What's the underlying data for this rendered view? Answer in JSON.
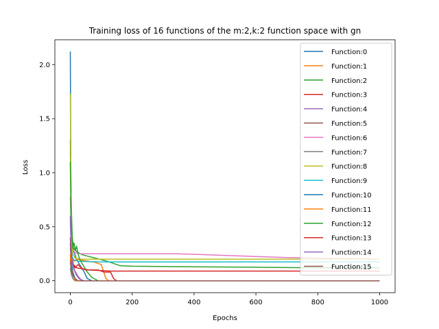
{
  "chart_data": {
    "type": "line",
    "title": "Training loss of 16 functions of the m:2,k:2 function space with gn",
    "xlabel": "Epochs",
    "ylabel": "Loss",
    "xlim": [
      -50,
      1050
    ],
    "ylim": [
      -0.11,
      2.23
    ],
    "xticks": [
      0,
      200,
      400,
      600,
      800,
      1000
    ],
    "yticks": [
      0.0,
      0.5,
      1.0,
      1.5,
      2.0
    ],
    "xtick_labels": [
      "0",
      "200",
      "400",
      "600",
      "800",
      "1000"
    ],
    "ytick_labels": [
      "0.0",
      "0.5",
      "1.0",
      "1.5",
      "2.0"
    ],
    "grid": false,
    "legend_position": "upper right",
    "series": [
      {
        "name": "Function:0",
        "color": "#1f77b4",
        "points": [
          [
            0,
            2.12
          ],
          [
            2,
            0.9
          ],
          [
            5,
            0.45
          ],
          [
            10,
            0.28
          ],
          [
            20,
            0.2
          ],
          [
            30,
            0.15
          ],
          [
            45,
            0.08
          ],
          [
            55,
            0.02
          ],
          [
            70,
            0.0
          ],
          [
            1000,
            0.0
          ]
        ]
      },
      {
        "name": "Function:1",
        "color": "#ff7f0e",
        "points": [
          [
            0,
            1.2
          ],
          [
            3,
            0.5
          ],
          [
            6,
            0.2
          ],
          [
            12,
            0.18
          ],
          [
            20,
            0.2
          ],
          [
            40,
            0.19
          ],
          [
            80,
            0.17
          ],
          [
            100,
            0.15
          ],
          [
            108,
            0.08
          ],
          [
            115,
            0.02
          ],
          [
            125,
            0.0
          ],
          [
            1000,
            0.0
          ]
        ]
      },
      {
        "name": "Function:2",
        "color": "#2ca02c",
        "points": [
          [
            0,
            1.3
          ],
          [
            3,
            0.7
          ],
          [
            6,
            0.4
          ],
          [
            10,
            0.3
          ],
          [
            20,
            0.27
          ],
          [
            40,
            0.24
          ],
          [
            80,
            0.21
          ],
          [
            120,
            0.18
          ],
          [
            160,
            0.14
          ],
          [
            200,
            0.135
          ],
          [
            400,
            0.13
          ],
          [
            600,
            0.125
          ],
          [
            800,
            0.12
          ],
          [
            1000,
            0.12
          ]
        ]
      },
      {
        "name": "Function:3",
        "color": "#d62728",
        "points": [
          [
            0,
            0.22
          ],
          [
            5,
            0.2
          ],
          [
            10,
            0.15
          ],
          [
            20,
            0.12
          ],
          [
            40,
            0.11
          ],
          [
            60,
            0.1
          ],
          [
            100,
            0.095
          ],
          [
            130,
            0.09
          ],
          [
            200,
            0.09
          ],
          [
            1000,
            0.09
          ]
        ]
      },
      {
        "name": "Function:4",
        "color": "#9467bd",
        "points": [
          [
            0,
            0.3
          ],
          [
            3,
            0.22
          ],
          [
            8,
            0.15
          ],
          [
            15,
            0.09
          ],
          [
            25,
            0.04
          ],
          [
            35,
            0.01
          ],
          [
            45,
            0.0
          ],
          [
            1000,
            0.0
          ]
        ]
      },
      {
        "name": "Function:5",
        "color": "#8c564b",
        "points": [
          [
            0,
            0.2
          ],
          [
            3,
            0.12
          ],
          [
            8,
            0.06
          ],
          [
            15,
            0.02
          ],
          [
            25,
            0.0
          ],
          [
            1000,
            0.0
          ]
        ]
      },
      {
        "name": "Function:6",
        "color": "#e377c2",
        "points": [
          [
            0,
            0.78
          ],
          [
            3,
            0.45
          ],
          [
            6,
            0.3
          ],
          [
            15,
            0.26
          ],
          [
            30,
            0.25
          ],
          [
            100,
            0.25
          ],
          [
            200,
            0.25
          ],
          [
            340,
            0.25
          ],
          [
            400,
            0.245
          ],
          [
            500,
            0.235
          ],
          [
            600,
            0.225
          ],
          [
            700,
            0.215
          ],
          [
            800,
            0.21
          ],
          [
            900,
            0.205
          ],
          [
            1000,
            0.2
          ]
        ]
      },
      {
        "name": "Function:7",
        "color": "#7f7f7f",
        "points": [
          [
            0,
            0.12
          ],
          [
            3,
            0.06
          ],
          [
            8,
            0.02
          ],
          [
            15,
            0.0
          ],
          [
            1000,
            0.0
          ]
        ]
      },
      {
        "name": "Function:8",
        "color": "#bcbd22",
        "points": [
          [
            0,
            1.73
          ],
          [
            2,
            0.9
          ],
          [
            4,
            0.45
          ],
          [
            8,
            0.25
          ],
          [
            15,
            0.21
          ],
          [
            30,
            0.2
          ],
          [
            100,
            0.2
          ],
          [
            300,
            0.2
          ],
          [
            600,
            0.2
          ],
          [
            1000,
            0.2
          ]
        ]
      },
      {
        "name": "Function:9",
        "color": "#17becf",
        "points": [
          [
            0,
            0.55
          ],
          [
            3,
            0.3
          ],
          [
            6,
            0.22
          ],
          [
            12,
            0.19
          ],
          [
            30,
            0.18
          ],
          [
            100,
            0.175
          ],
          [
            300,
            0.175
          ],
          [
            600,
            0.175
          ],
          [
            1000,
            0.175
          ]
        ]
      },
      {
        "name": "Function:10",
        "color": "#1f77b4",
        "points": [
          [
            0,
            0.35
          ],
          [
            3,
            0.18
          ],
          [
            8,
            0.08
          ],
          [
            15,
            0.02
          ],
          [
            22,
            0.0
          ],
          [
            1000,
            0.0
          ]
        ]
      },
      {
        "name": "Function:11",
        "color": "#ff7f0e",
        "points": [
          [
            0,
            0.25
          ],
          [
            3,
            0.12
          ],
          [
            8,
            0.05
          ],
          [
            15,
            0.01
          ],
          [
            20,
            0.0
          ],
          [
            1000,
            0.0
          ]
        ]
      },
      {
        "name": "Function:12",
        "color": "#2ca02c",
        "points": [
          [
            0,
            1.1
          ],
          [
            2,
            0.6
          ],
          [
            5,
            0.45
          ],
          [
            8,
            0.3
          ],
          [
            12,
            0.35
          ],
          [
            16,
            0.28
          ],
          [
            20,
            0.32
          ],
          [
            25,
            0.25
          ],
          [
            30,
            0.2
          ],
          [
            40,
            0.15
          ],
          [
            55,
            0.08
          ],
          [
            70,
            0.03
          ],
          [
            90,
            0.0
          ],
          [
            1000,
            0.0
          ]
        ]
      },
      {
        "name": "Function:13",
        "color": "#d62728",
        "points": [
          [
            0,
            0.4
          ],
          [
            3,
            0.22
          ],
          [
            8,
            0.15
          ],
          [
            15,
            0.12
          ],
          [
            25,
            0.15
          ],
          [
            35,
            0.12
          ],
          [
            50,
            0.1
          ],
          [
            70,
            0.1
          ],
          [
            90,
            0.1
          ],
          [
            110,
            0.08
          ],
          [
            130,
            0.08
          ],
          [
            140,
            0.02
          ],
          [
            150,
            0.0
          ],
          [
            1000,
            0.0
          ]
        ]
      },
      {
        "name": "Function:14",
        "color": "#9467bd",
        "points": [
          [
            0,
            0.6
          ],
          [
            2,
            0.35
          ],
          [
            5,
            0.2
          ],
          [
            10,
            0.12
          ],
          [
            18,
            0.06
          ],
          [
            28,
            0.02
          ],
          [
            38,
            0.0
          ],
          [
            1000,
            0.0
          ]
        ]
      },
      {
        "name": "Function:15",
        "color": "#8c564b",
        "points": [
          [
            0,
            0.18
          ],
          [
            3,
            0.1
          ],
          [
            8,
            0.05
          ],
          [
            15,
            0.02
          ],
          [
            25,
            0.0
          ],
          [
            1000,
            0.0
          ]
        ]
      }
    ]
  }
}
